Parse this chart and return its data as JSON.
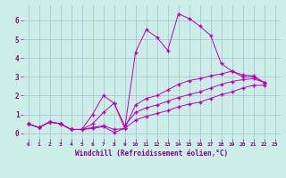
{
  "bg_color": "#cceee8",
  "grid_color": "#aabbcc",
  "line_color": "#bb00bb",
  "marker_color": "#bb00bb",
  "xlabel": "Windchill (Refroidissement éolien,°C)",
  "xlabel_color": "#880088",
  "tick_color": "#880088",
  "xlim": [
    -0.5,
    23.5
  ],
  "ylim": [
    -0.3,
    6.8
  ],
  "yticks": [
    0,
    1,
    2,
    3,
    4,
    5,
    6
  ],
  "xticks": [
    0,
    1,
    2,
    3,
    4,
    5,
    6,
    7,
    8,
    9,
    10,
    11,
    12,
    13,
    14,
    15,
    16,
    17,
    18,
    19,
    20,
    21,
    22,
    23
  ],
  "series": [
    [
      0.5,
      0.3,
      0.6,
      0.5,
      0.2,
      0.2,
      1.0,
      2.0,
      1.6,
      0.25,
      4.3,
      5.5,
      5.1,
      4.4,
      6.35,
      6.1,
      5.7,
      5.2,
      3.7,
      3.3,
      3.0,
      3.0,
      2.7
    ],
    [
      0.5,
      0.3,
      0.6,
      0.5,
      0.2,
      0.2,
      0.25,
      0.35,
      0.05,
      0.25,
      1.5,
      1.85,
      2.0,
      2.3,
      2.6,
      2.8,
      2.9,
      3.05,
      3.15,
      3.3,
      3.1,
      3.05,
      2.7
    ],
    [
      0.5,
      0.3,
      0.6,
      0.5,
      0.2,
      0.2,
      0.5,
      1.1,
      1.6,
      0.4,
      1.1,
      1.35,
      1.5,
      1.7,
      1.9,
      2.05,
      2.2,
      2.4,
      2.6,
      2.75,
      2.85,
      2.9,
      2.7
    ],
    [
      0.5,
      0.3,
      0.6,
      0.5,
      0.2,
      0.2,
      0.3,
      0.4,
      0.2,
      0.25,
      0.7,
      0.9,
      1.05,
      1.2,
      1.4,
      1.55,
      1.65,
      1.85,
      2.05,
      2.2,
      2.4,
      2.55,
      2.55
    ]
  ]
}
